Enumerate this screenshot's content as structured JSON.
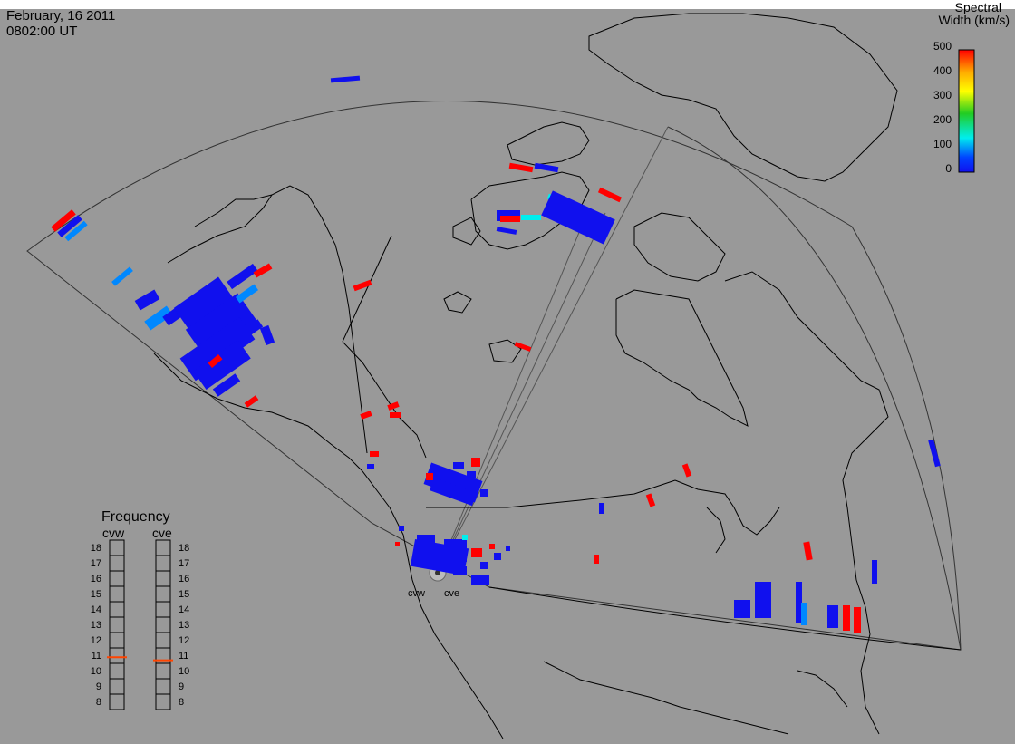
{
  "header": {
    "date": "February, 16 2011",
    "time": "0802:00 UT"
  },
  "colorbar": {
    "title_line1": "Spectral",
    "title_line2": "Width (km/s)",
    "ticks": [
      "500",
      "400",
      "300",
      "200",
      "100",
      "0"
    ],
    "colors": [
      "#ff0000",
      "#ffaa00",
      "#ffff00",
      "#22cc22",
      "#00eeee",
      "#0044ff",
      "#1010ee"
    ]
  },
  "frequency_panel": {
    "title": "Frequency",
    "radars": [
      {
        "name": "cvw",
        "value": 10.9
      },
      {
        "name": "cve",
        "value": 10.7
      }
    ],
    "ticks": [
      "18",
      "17",
      "16",
      "15",
      "14",
      "13",
      "12",
      "11",
      "10",
      "9",
      "8"
    ],
    "marker_color": "#ff4400"
  },
  "radar_labels": {
    "west": "cvw",
    "east": "cve"
  },
  "colors": {
    "background": "#999999",
    "land_outline": "#000000",
    "low_width": "#1010ee",
    "mid_width": "#0088ff",
    "cyan_width": "#00eeee",
    "high_width": "#ff0000"
  }
}
